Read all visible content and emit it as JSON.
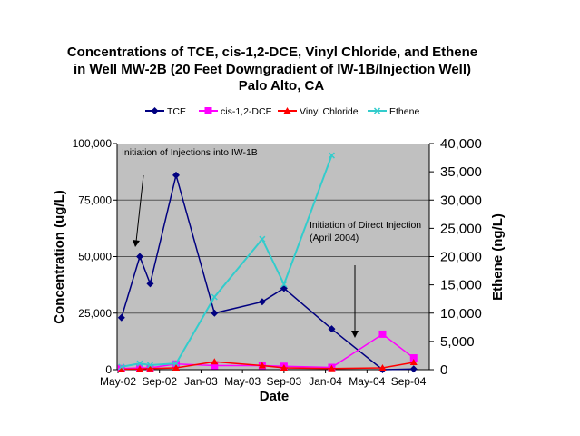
{
  "chart_data": {
    "type": "line",
    "title": [
      "Concentrations of TCE, cis-1,2-DCE, Vinyl Chloride, and Ethene",
      "in Well MW-2B (20 Feet Downgradient of IW-1B/Injection Well)",
      "Palo Alto, CA"
    ],
    "xlabel": "Date",
    "ylabel": "Concentration (ug/L)",
    "y2label": "Ethene (ng/L)",
    "x_ticks": [
      "May-02",
      "Sep-02",
      "Jan-03",
      "May-03",
      "Sep-03",
      "Jan-04",
      "May-04",
      "Sep-04"
    ],
    "ylim": [
      0,
      100000
    ],
    "y_ticks": [
      "0",
      "25,000",
      "50,000",
      "75,000",
      "100,000"
    ],
    "y2lim": [
      0,
      40000
    ],
    "y2_ticks": [
      "0",
      "5,000",
      "10,000",
      "15,000",
      "20,000",
      "25,000",
      "30,000",
      "35,000",
      "40,000"
    ],
    "grid": true,
    "legend_position": "top",
    "background": "#c0c0c0",
    "x_dates": [
      "2002-05-11",
      "2002-07-04",
      "2002-08-04",
      "2002-10-19",
      "2003-02-10",
      "2003-06-28",
      "2003-09-01",
      "2004-01-19",
      "2004-06-16",
      "2004-09-16"
    ],
    "series": [
      {
        "name": "TCE",
        "axis": "left",
        "color": "#000080",
        "marker": "diamond",
        "values": [
          23000,
          50000,
          38000,
          86000,
          25000,
          30000,
          36000,
          18000,
          0,
          300
        ]
      },
      {
        "name": "cis-1,2-DCE",
        "axis": "left",
        "color": "#ff00ff",
        "marker": "square",
        "values": [
          500,
          800,
          800,
          2500,
          1800,
          1800,
          1500,
          1000,
          15700,
          5200
        ]
      },
      {
        "name": "Vinyl Chloride",
        "axis": "left",
        "color": "#ff0000",
        "marker": "triangle",
        "values": [
          200,
          300,
          500,
          800,
          3500,
          1800,
          800,
          500,
          800,
          3200
        ]
      },
      {
        "name": "Ethene",
        "axis": "right",
        "color": "#33cccc",
        "marker": "x",
        "values": [
          500,
          1100,
          800,
          1100,
          12850,
          23100,
          15100,
          37900,
          null,
          null
        ]
      }
    ],
    "annotations": [
      {
        "text": [
          "Initiation of Injections into IW-1B"
        ]
      },
      {
        "text": [
          "Initiation of Direct Injection",
          "(April 2004)"
        ]
      }
    ]
  }
}
